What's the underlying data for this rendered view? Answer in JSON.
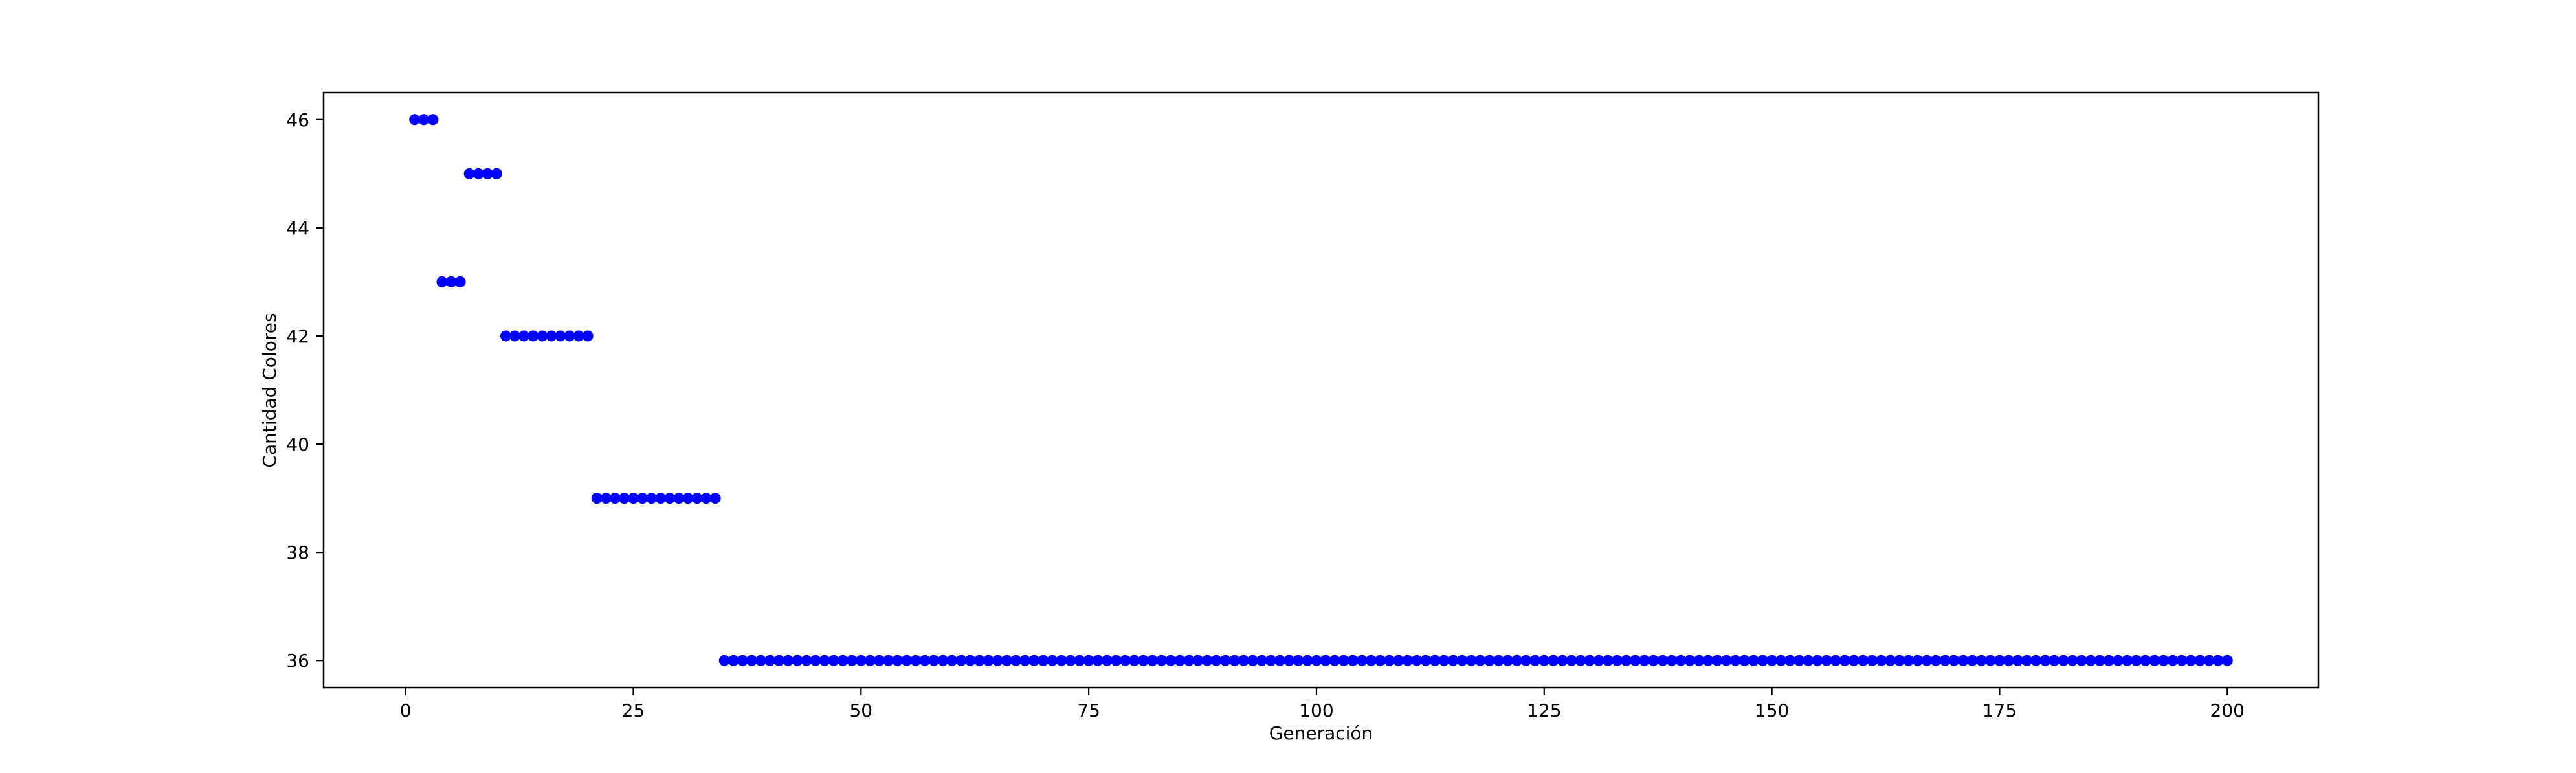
{
  "chart_data": {
    "type": "scatter",
    "title": "",
    "xlabel": "Generación",
    "ylabel": "Cantidad Colores",
    "xlim": [
      -9,
      210
    ],
    "ylim": [
      35.5,
      46.5
    ],
    "xticks": [
      0,
      25,
      50,
      75,
      100,
      125,
      150,
      175,
      200
    ],
    "yticks": [
      36,
      38,
      40,
      42,
      44,
      46
    ],
    "grid": false,
    "legend": "none",
    "marker_color": "#0000ff",
    "series": [
      {
        "segments": [
          {
            "x_from": 1,
            "x_to": 3,
            "y": 46
          },
          {
            "x_from": 4,
            "x_to": 6,
            "y": 43
          },
          {
            "x_from": 7,
            "x_to": 10,
            "y": 45
          },
          {
            "x_from": 11,
            "x_to": 20,
            "y": 42
          },
          {
            "x_from": 21,
            "x_to": 34,
            "y": 39
          },
          {
            "x_from": 35,
            "x_to": 200,
            "y": 36
          }
        ]
      }
    ]
  }
}
